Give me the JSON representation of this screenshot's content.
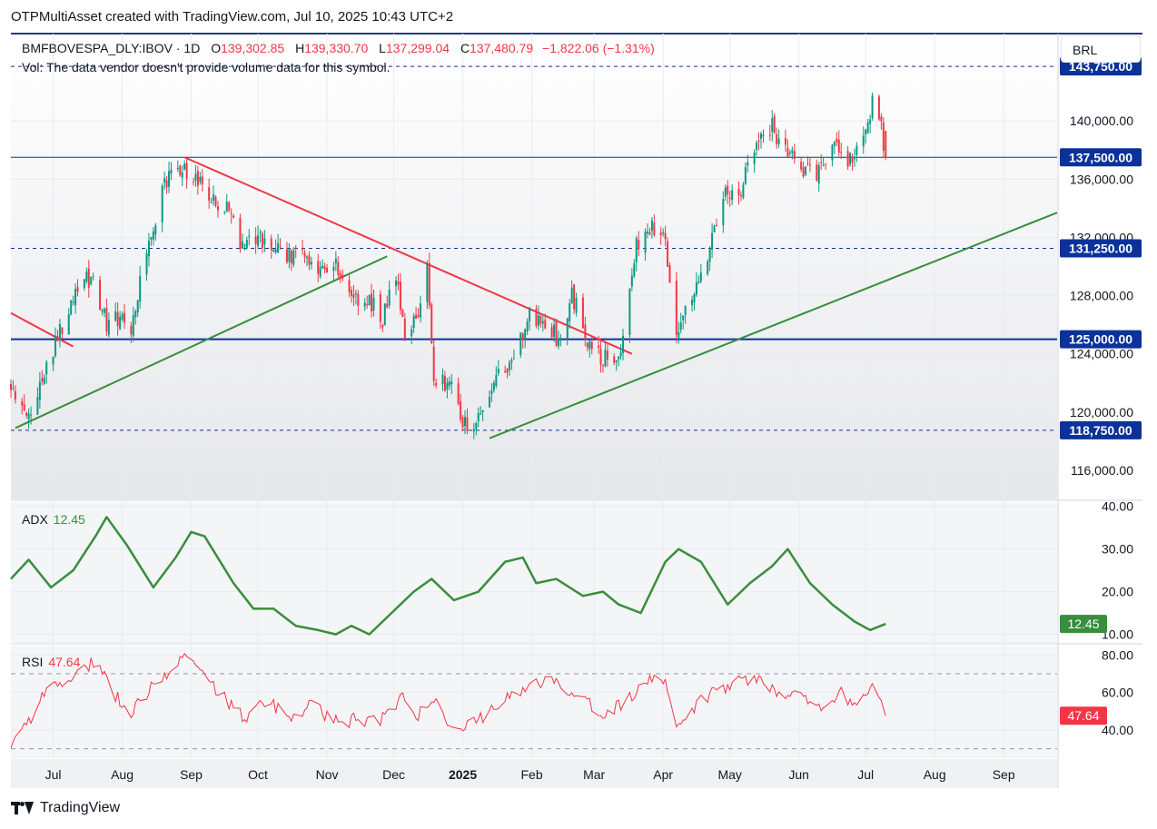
{
  "header": {
    "text": "OTPMultiAsset created with TradingView.com, Jul 10, 2025 10:43 UTC+2"
  },
  "legend": {
    "symbol": "BMFBOVESPA_DLY:IBOV · 1D",
    "o_label": "O",
    "o_value": "139,302.85",
    "h_label": "H",
    "h_value": "139,330.70",
    "l_label": "L",
    "l_value": "137,299.04",
    "c_label": "C",
    "c_value": "137,480.79",
    "change": "−1,822.06 (−1.31%)",
    "volume_note": "Vol: The data vendor doesn't provide volume data for this symbol."
  },
  "currency": "BRL",
  "footer": {
    "brand": "TradingView"
  },
  "colors": {
    "up": "#089981",
    "down": "#f23645",
    "support": "#388e3c",
    "resistance": "#f23645",
    "level": "#0c3299",
    "adx": "#388e3c",
    "rsi": "#f23645"
  },
  "chart_data": [
    {
      "type": "candlestick",
      "pane": "price",
      "ylim": [
        114000,
        146000
      ],
      "yticks": [
        116000,
        120000,
        124000,
        128000,
        132000,
        136000,
        140000
      ],
      "ytick_labels": [
        "116,000.00",
        "120,000.00",
        "124,000.00",
        "128,000.00",
        "132,000.00",
        "136,000.00",
        "140,000.00"
      ],
      "x_range": [
        "2024-06-12",
        "2025-09-25"
      ],
      "x_ticks": [
        {
          "date": "2024-07-01",
          "label": "Jul",
          "bold": false
        },
        {
          "date": "2024-08-01",
          "label": "Aug",
          "bold": false
        },
        {
          "date": "2024-09-01",
          "label": "Sep",
          "bold": false
        },
        {
          "date": "2024-10-01",
          "label": "Oct",
          "bold": false
        },
        {
          "date": "2024-11-01",
          "label": "Nov",
          "bold": false
        },
        {
          "date": "2024-12-01",
          "label": "Dec",
          "bold": false
        },
        {
          "date": "2025-01-01",
          "label": "2025",
          "bold": true
        },
        {
          "date": "2025-02-01",
          "label": "Feb",
          "bold": false
        },
        {
          "date": "2025-03-01",
          "label": "Mar",
          "bold": false
        },
        {
          "date": "2025-04-01",
          "label": "Apr",
          "bold": false
        },
        {
          "date": "2025-05-01",
          "label": "May",
          "bold": false
        },
        {
          "date": "2025-06-01",
          "label": "Jun",
          "bold": false
        },
        {
          "date": "2025-07-01",
          "label": "Jul",
          "bold": false
        },
        {
          "date": "2025-08-01",
          "label": "Aug",
          "bold": false
        },
        {
          "date": "2025-09-01",
          "label": "Sep",
          "bold": false
        }
      ],
      "close_path": [
        [
          "2024-06-12",
          121500
        ],
        [
          "2024-06-20",
          119800
        ],
        [
          "2024-06-27",
          122500
        ],
        [
          "2024-07-05",
          125800
        ],
        [
          "2024-07-12",
          128500
        ],
        [
          "2024-07-18",
          129300
        ],
        [
          "2024-07-25",
          126200
        ],
        [
          "2024-08-01",
          126500
        ],
        [
          "2024-08-05",
          125500
        ],
        [
          "2024-08-12",
          131500
        ],
        [
          "2024-08-20",
          135500
        ],
        [
          "2024-08-27",
          136800
        ],
        [
          "2024-09-03",
          136200
        ],
        [
          "2024-09-10",
          134300
        ],
        [
          "2024-09-17",
          134200
        ],
        [
          "2024-09-24",
          131300
        ],
        [
          "2024-10-01",
          132000
        ],
        [
          "2024-10-08",
          131500
        ],
        [
          "2024-10-15",
          130600
        ],
        [
          "2024-10-22",
          130500
        ],
        [
          "2024-10-29",
          129800
        ],
        [
          "2024-11-05",
          130200
        ],
        [
          "2024-11-12",
          127500
        ],
        [
          "2024-11-19",
          127800
        ],
        [
          "2024-11-26",
          126500
        ],
        [
          "2024-12-02",
          129500
        ],
        [
          "2024-12-06",
          125500
        ],
        [
          "2024-12-12",
          126500
        ],
        [
          "2024-12-16",
          129900
        ],
        [
          "2024-12-19",
          122500
        ],
        [
          "2024-12-27",
          121500
        ],
        [
          "2025-01-03",
          118900
        ],
        [
          "2025-01-10",
          119500
        ],
        [
          "2025-01-17",
          122800
        ],
        [
          "2025-01-24",
          123500
        ],
        [
          "2025-01-31",
          126500
        ],
        [
          "2025-02-07",
          125800
        ],
        [
          "2025-02-14",
          125000
        ],
        [
          "2025-02-19",
          128200
        ],
        [
          "2025-02-26",
          124500
        ],
        [
          "2025-03-06",
          123600
        ],
        [
          "2025-03-13",
          123900
        ],
        [
          "2025-03-20",
          131300
        ],
        [
          "2025-03-27",
          133000
        ],
        [
          "2025-04-02",
          131500
        ],
        [
          "2025-04-07",
          124800
        ],
        [
          "2025-04-14",
          128000
        ],
        [
          "2025-04-21",
          131000
        ],
        [
          "2025-04-28",
          135200
        ],
        [
          "2025-05-05",
          134500
        ],
        [
          "2025-05-09",
          136800
        ],
        [
          "2025-05-15",
          139400
        ],
        [
          "2025-05-20",
          139500
        ],
        [
          "2025-05-26",
          137700
        ],
        [
          "2025-06-02",
          136900
        ],
        [
          "2025-06-09",
          136200
        ],
        [
          "2025-06-16",
          138200
        ],
        [
          "2025-06-23",
          137100
        ],
        [
          "2025-06-30",
          139000
        ],
        [
          "2025-07-04",
          141200
        ],
        [
          "2025-07-08",
          139302
        ],
        [
          "2025-07-10",
          137480
        ]
      ],
      "key_candles": [
        {
          "date": "2025-07-10",
          "open": 139302.85,
          "high": 139330.7,
          "low": 137299.04,
          "close": 137480.79
        }
      ],
      "horizontal_levels": [
        {
          "value": 143750,
          "label": "143,750.00",
          "style": "dashed"
        },
        {
          "value": 137500,
          "label": "137,500.00",
          "style": "solid"
        },
        {
          "value": 131250,
          "label": "131,250.00",
          "style": "dashed"
        },
        {
          "value": 125000,
          "label": "125,000.00",
          "style": "solid-thick"
        },
        {
          "value": 118750,
          "label": "118,750.00",
          "style": "dashed"
        }
      ],
      "trendlines": [
        {
          "kind": "resistance",
          "from": [
            "2024-08-29",
            137500
          ],
          "to": [
            "2025-03-18",
            124000
          ]
        },
        {
          "kind": "resistance",
          "from": [
            "2024-06-12",
            126800
          ],
          "to": [
            "2024-07-10",
            124500
          ]
        },
        {
          "kind": "support",
          "from": [
            "2024-06-14",
            118900
          ],
          "to": [
            "2024-11-28",
            130700
          ]
        },
        {
          "kind": "support",
          "from": [
            "2025-01-13",
            118200
          ],
          "to": [
            "2025-09-25",
            133700
          ]
        }
      ]
    },
    {
      "type": "line",
      "pane": "adx",
      "name": "ADX",
      "last_value": "12.45",
      "ylim": [
        8,
        41
      ],
      "yticks": [
        10,
        20,
        30,
        40
      ],
      "ytick_labels": [
        "10.00",
        "20.00",
        "30.00",
        "40.00"
      ],
      "points": [
        [
          "2024-06-12",
          23
        ],
        [
          "2024-06-20",
          27.5
        ],
        [
          "2024-06-30",
          21
        ],
        [
          "2024-07-10",
          25
        ],
        [
          "2024-07-20",
          33
        ],
        [
          "2024-07-25",
          37.5
        ],
        [
          "2024-08-03",
          31
        ],
        [
          "2024-08-15",
          21
        ],
        [
          "2024-08-25",
          28
        ],
        [
          "2024-09-01",
          34
        ],
        [
          "2024-09-07",
          33
        ],
        [
          "2024-09-20",
          22
        ],
        [
          "2024-09-29",
          16
        ],
        [
          "2024-10-08",
          16
        ],
        [
          "2024-10-18",
          12
        ],
        [
          "2024-10-28",
          11
        ],
        [
          "2024-11-05",
          10
        ],
        [
          "2024-11-12",
          12
        ],
        [
          "2024-11-20",
          10
        ],
        [
          "2024-11-30",
          15
        ],
        [
          "2024-12-10",
          20
        ],
        [
          "2024-12-18",
          23
        ],
        [
          "2024-12-28",
          18
        ],
        [
          "2025-01-08",
          20
        ],
        [
          "2025-01-20",
          27
        ],
        [
          "2025-01-28",
          28
        ],
        [
          "2025-02-03",
          22
        ],
        [
          "2025-02-12",
          23
        ],
        [
          "2025-02-24",
          19
        ],
        [
          "2025-03-05",
          20
        ],
        [
          "2025-03-12",
          17
        ],
        [
          "2025-03-22",
          15
        ],
        [
          "2025-04-02",
          27
        ],
        [
          "2025-04-08",
          30
        ],
        [
          "2025-04-18",
          27
        ],
        [
          "2025-04-30",
          17
        ],
        [
          "2025-05-10",
          22
        ],
        [
          "2025-05-20",
          26
        ],
        [
          "2025-05-27",
          30
        ],
        [
          "2025-06-06",
          22
        ],
        [
          "2025-06-16",
          17
        ],
        [
          "2025-06-26",
          13
        ],
        [
          "2025-07-03",
          11
        ],
        [
          "2025-07-10",
          12.45
        ]
      ]
    },
    {
      "type": "line",
      "pane": "rsi",
      "name": "RSI",
      "last_value": "47.64",
      "ylim": [
        25,
        85
      ],
      "yticks": [
        40,
        60,
        80
      ],
      "ytick_labels": [
        "40.00",
        "60.00",
        "80.00"
      ],
      "bands": [
        30,
        70
      ],
      "points": [
        [
          "2024-06-12",
          30
        ],
        [
          "2024-06-20",
          45
        ],
        [
          "2024-06-30",
          64
        ],
        [
          "2024-07-10",
          68
        ],
        [
          "2024-07-20",
          78
        ],
        [
          "2024-07-28",
          60
        ],
        [
          "2024-08-05",
          50
        ],
        [
          "2024-08-15",
          64
        ],
        [
          "2024-08-25",
          76
        ],
        [
          "2024-08-31",
          78
        ],
        [
          "2024-09-07",
          68
        ],
        [
          "2024-09-15",
          58
        ],
        [
          "2024-09-25",
          46
        ],
        [
          "2024-10-05",
          55
        ],
        [
          "2024-10-15",
          48
        ],
        [
          "2024-10-25",
          53
        ],
        [
          "2024-11-05",
          44
        ],
        [
          "2024-11-15",
          46
        ],
        [
          "2024-11-25",
          44
        ],
        [
          "2024-12-05",
          59
        ],
        [
          "2024-12-12",
          47
        ],
        [
          "2024-12-18",
          58
        ],
        [
          "2024-12-26",
          44
        ],
        [
          "2025-01-06",
          43
        ],
        [
          "2025-01-15",
          54
        ],
        [
          "2025-01-25",
          58
        ],
        [
          "2025-02-03",
          66
        ],
        [
          "2025-02-12",
          64
        ],
        [
          "2025-02-22",
          60
        ],
        [
          "2025-03-05",
          49
        ],
        [
          "2025-03-15",
          54
        ],
        [
          "2025-03-25",
          67
        ],
        [
          "2025-04-02",
          63
        ],
        [
          "2025-04-07",
          42
        ],
        [
          "2025-04-15",
          52
        ],
        [
          "2025-04-25",
          62
        ],
        [
          "2025-05-05",
          66
        ],
        [
          "2025-05-15",
          68
        ],
        [
          "2025-05-24",
          59
        ],
        [
          "2025-06-01",
          58
        ],
        [
          "2025-06-10",
          52
        ],
        [
          "2025-06-20",
          60
        ],
        [
          "2025-06-27",
          52
        ],
        [
          "2025-07-04",
          66
        ],
        [
          "2025-07-10",
          47.64
        ]
      ]
    }
  ]
}
